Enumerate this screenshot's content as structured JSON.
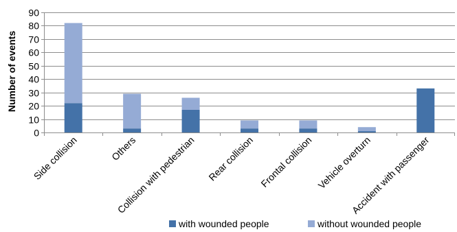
{
  "chart_data": {
    "type": "bar",
    "stacked": true,
    "title": "",
    "xlabel": "",
    "ylabel": "Number of events",
    "ylim": [
      0,
      90
    ],
    "yticks": [
      0,
      10,
      20,
      30,
      40,
      50,
      60,
      70,
      80,
      90
    ],
    "grid": true,
    "legend_position": "bottom",
    "categories": [
      "Side collision",
      "Others",
      "Collision with pedestrian",
      "Rear collision",
      "Frontal collision",
      "Vehicle overturn",
      "Accident with passenger"
    ],
    "series": [
      {
        "name": "with wounded people",
        "color": "#4472A8",
        "values": [
          22,
          3,
          17,
          3,
          3,
          1,
          33
        ]
      },
      {
        "name": "without wounded people",
        "color": "#95ABD5",
        "values": [
          60,
          26,
          9,
          6,
          6,
          3,
          0
        ]
      }
    ]
  }
}
